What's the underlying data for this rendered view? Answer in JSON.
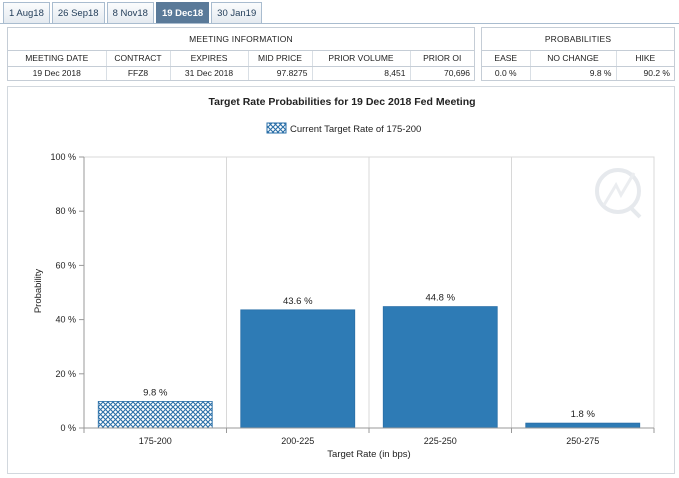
{
  "tabs": [
    {
      "label": "1 Aug18"
    },
    {
      "label": "26 Sep18"
    },
    {
      "label": "8 Nov18"
    },
    {
      "label": "19 Dec18"
    },
    {
      "label": "30 Jan19"
    }
  ],
  "active_tab": 3,
  "meeting_info": {
    "title": "MEETING INFORMATION",
    "headers": {
      "meeting_date": "MEETING DATE",
      "contract": "CONTRACT",
      "expires": "EXPIRES",
      "mid_price": "MID PRICE",
      "prior_volume": "PRIOR VOLUME",
      "prior_oi": "PRIOR OI"
    },
    "values": {
      "meeting_date": "19 Dec 2018",
      "contract": "FFZ8",
      "expires": "31 Dec 2018",
      "mid_price": "97.8275",
      "prior_volume": "8,451",
      "prior_oi": "70,696"
    }
  },
  "probabilities": {
    "title": "PROBABILITIES",
    "headers": {
      "ease": "EASE",
      "no_change": "NO CHANGE",
      "hike": "HIKE"
    },
    "values": {
      "ease": "0.0 %",
      "no_change": "9.8 %",
      "hike": "90.2 %"
    }
  },
  "chart_data": {
    "type": "bar",
    "title": "Target Rate Probabilities for 19 Dec 2018 Fed Meeting",
    "legend": "Current Target Rate of 175-200",
    "legend_position": "top-center",
    "xlabel": "Target Rate (in bps)",
    "ylabel": "Probability",
    "categories": [
      "175-200",
      "200-225",
      "225-250",
      "250-275"
    ],
    "values": [
      9.8,
      43.6,
      44.8,
      1.8
    ],
    "data_labels": [
      "9.8 %",
      "43.6 %",
      "44.8 %",
      "1.8 %"
    ],
    "current_index": 0,
    "ylim": [
      0,
      100
    ],
    "yticks": [
      0,
      20,
      40,
      60,
      80,
      100
    ],
    "ytick_labels": [
      "0 %",
      "20 %",
      "40 %",
      "60 %",
      "80 %",
      "100 %"
    ],
    "grid": "vertical",
    "colors": {
      "bar": "#2e7bb5",
      "hatch_fg": "#2a6fa8",
      "hatch_bg": "#ffffff",
      "grid": "#d8d8d8",
      "axis": "#999999"
    }
  }
}
